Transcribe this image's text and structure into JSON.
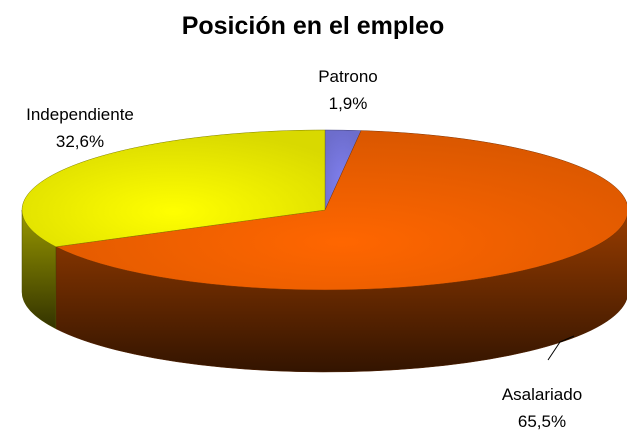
{
  "chart_data": {
    "type": "pie",
    "title": "Posición en el empleo",
    "categories": [
      "Patrono",
      "Asalariado",
      "Independiente"
    ],
    "values": [
      1.9,
      65.5,
      32.6
    ],
    "value_labels": [
      "1,9%",
      "65,5%",
      "32,6%"
    ],
    "colors": [
      "#8080f0",
      "#ff6600",
      "#ffff00"
    ],
    "three_d": true
  }
}
